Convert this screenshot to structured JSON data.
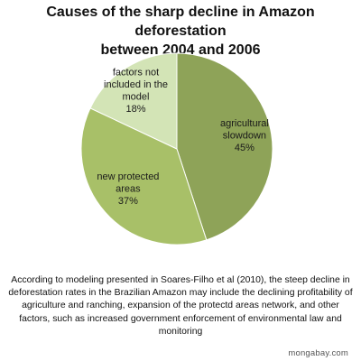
{
  "chart_data": {
    "type": "pie",
    "title_lines": [
      "Causes of the sharp decline in Amazon deforestation",
      "between 2004 and 2006"
    ],
    "slices": [
      {
        "label_lines": [
          "agricultural",
          "slowdown"
        ],
        "percent_label": "45%",
        "value": 45,
        "color": "#8ea358"
      },
      {
        "label_lines": [
          "new protected",
          "areas"
        ],
        "percent_label": "37%",
        "value": 37,
        "color": "#a8c068"
      },
      {
        "label_lines": [
          "factors not",
          "included in the",
          "model"
        ],
        "percent_label": "18%",
        "value": 18,
        "color": "#d3e4b6"
      }
    ],
    "start": "12 o'clock",
    "direction": "clockwise"
  },
  "caption": "According to modeling presented in Soares-Filho et al (2010), the steep decline in deforestation rates in the Brazilian Amazon may include the declining profitability of agriculture and ranching, expansion of the protectd areas network, and other factors, such as increased government enforcement of environmental law and monitoring",
  "credit": "mongabay.com"
}
